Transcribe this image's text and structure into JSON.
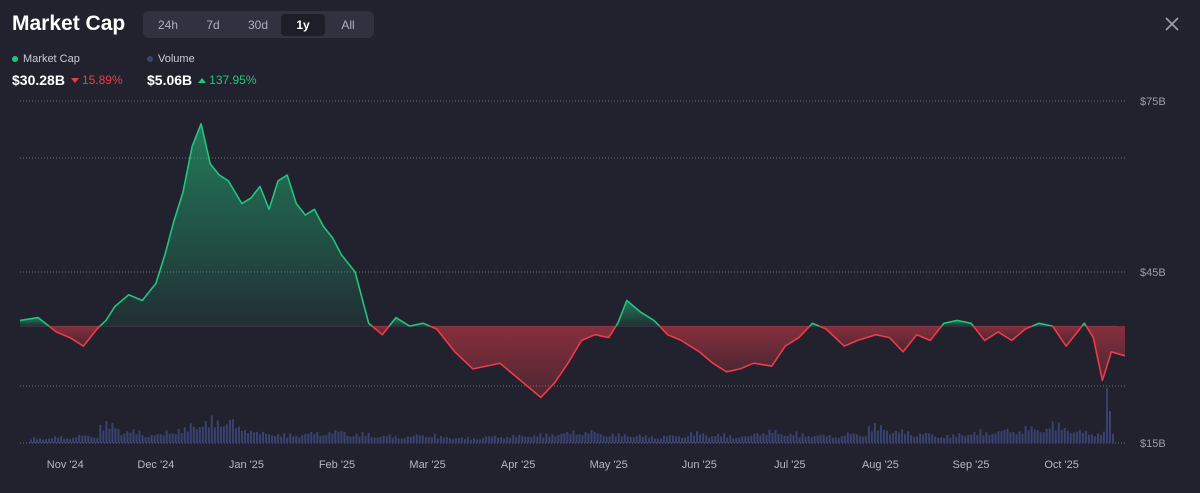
{
  "header": {
    "title": "Market Cap",
    "ranges": [
      "24h",
      "7d",
      "30d",
      "1y",
      "All"
    ],
    "active_range": "1y",
    "close_icon": "close-icon"
  },
  "stats": {
    "market_cap": {
      "label": "Market Cap",
      "value": "$30.28B",
      "change": "15.89%",
      "direction": "down",
      "color": "#22c47e"
    },
    "volume": {
      "label": "Volume",
      "value": "$5.06B",
      "change": "137.95%",
      "direction": "up",
      "color": "#3b4470"
    }
  },
  "colors": {
    "up": "#22c47e",
    "down": "#ef3a4a",
    "background": "#21222d",
    "volume_bar": "#3a4272"
  },
  "chart_data": {
    "type": "area",
    "title": "Market Cap",
    "y_ticks": [
      {
        "label": "$75B",
        "value": 75
      },
      {
        "label": "$45B",
        "value": 45
      },
      {
        "label": "$15B",
        "value": 15
      }
    ],
    "ylim": [
      15,
      75
    ],
    "baseline": 35.5,
    "grid": true,
    "x_ticks": [
      "Nov '24",
      "Dec '24",
      "Jan '25",
      "Feb '25",
      "Mar '25",
      "Apr '25",
      "May '25",
      "Jun '25",
      "Jul '25",
      "Aug '25",
      "Sep '25",
      "Oct '25"
    ],
    "x_tick_positions": [
      0.5,
      1.5,
      2.5,
      3.5,
      4.5,
      5.5,
      6.5,
      7.5,
      8.5,
      9.5,
      10.5,
      11.5
    ],
    "xlim": [
      0,
      12.2
    ],
    "series": [
      {
        "name": "Market Cap",
        "unit": "B USD",
        "x": [
          0,
          0.2,
          0.4,
          0.55,
          0.7,
          0.85,
          0.95,
          1.05,
          1.2,
          1.35,
          1.5,
          1.6,
          1.7,
          1.8,
          1.9,
          2.0,
          2.1,
          2.2,
          2.3,
          2.45,
          2.55,
          2.65,
          2.75,
          2.85,
          2.95,
          3.05,
          3.15,
          3.25,
          3.35,
          3.45,
          3.55,
          3.7,
          3.85,
          4.0,
          4.15,
          4.3,
          4.45,
          4.6,
          4.8,
          5.0,
          5.15,
          5.3,
          5.45,
          5.6,
          5.75,
          5.9,
          6.05,
          6.2,
          6.35,
          6.5,
          6.6,
          6.7,
          6.85,
          7.0,
          7.15,
          7.3,
          7.5,
          7.65,
          7.8,
          7.95,
          8.1,
          8.3,
          8.45,
          8.6,
          8.75,
          8.9,
          9.1,
          9.25,
          9.45,
          9.6,
          9.75,
          9.9,
          10.05,
          10.2,
          10.35,
          10.5,
          10.65,
          10.8,
          10.95,
          11.1,
          11.25,
          11.4,
          11.55,
          11.65,
          11.75,
          11.85,
          11.95,
          12.05,
          12.2
        ],
        "values": [
          36.5,
          37,
          34.5,
          33.5,
          32,
          35,
          36.5,
          39,
          41,
          40,
          43,
          48,
          54,
          59,
          67,
          71,
          64,
          62,
          61,
          57,
          58,
          60,
          56,
          61,
          62,
          57,
          55,
          56,
          53,
          51,
          48,
          45,
          36,
          34,
          37,
          35.5,
          36,
          35,
          31,
          28,
          28.5,
          29,
          27,
          25,
          23,
          25.5,
          29,
          33,
          34,
          33.5,
          36,
          40,
          38,
          36.5,
          34,
          33,
          31,
          29,
          27.5,
          28,
          29,
          28.5,
          32,
          33.5,
          36,
          35,
          32,
          33,
          34,
          33.5,
          31,
          34,
          33,
          36,
          36.5,
          36,
          33,
          34.5,
          33,
          35,
          36,
          35.5,
          32,
          34,
          36,
          33.5,
          26,
          31,
          30.3
        ]
      },
      {
        "name": "Volume",
        "unit": "B USD",
        "relative_heights": [
          0.15,
          0.18,
          0.22,
          0.55,
          0.35,
          0.25,
          0.4,
          0.6,
          0.7,
          0.45,
          0.3,
          0.25,
          0.3,
          0.35,
          0.28,
          0.22,
          0.2,
          0.25,
          0.18,
          0.15,
          0.2,
          0.22,
          0.25,
          0.3,
          0.35,
          0.28,
          0.25,
          0.2,
          0.22,
          0.3,
          0.25,
          0.2,
          0.35,
          0.3,
          0.25,
          0.22,
          0.28,
          0.5,
          0.35,
          0.28,
          0.22,
          0.3,
          0.35,
          0.4,
          0.45,
          0.55,
          0.35,
          0.3
        ]
      }
    ]
  }
}
